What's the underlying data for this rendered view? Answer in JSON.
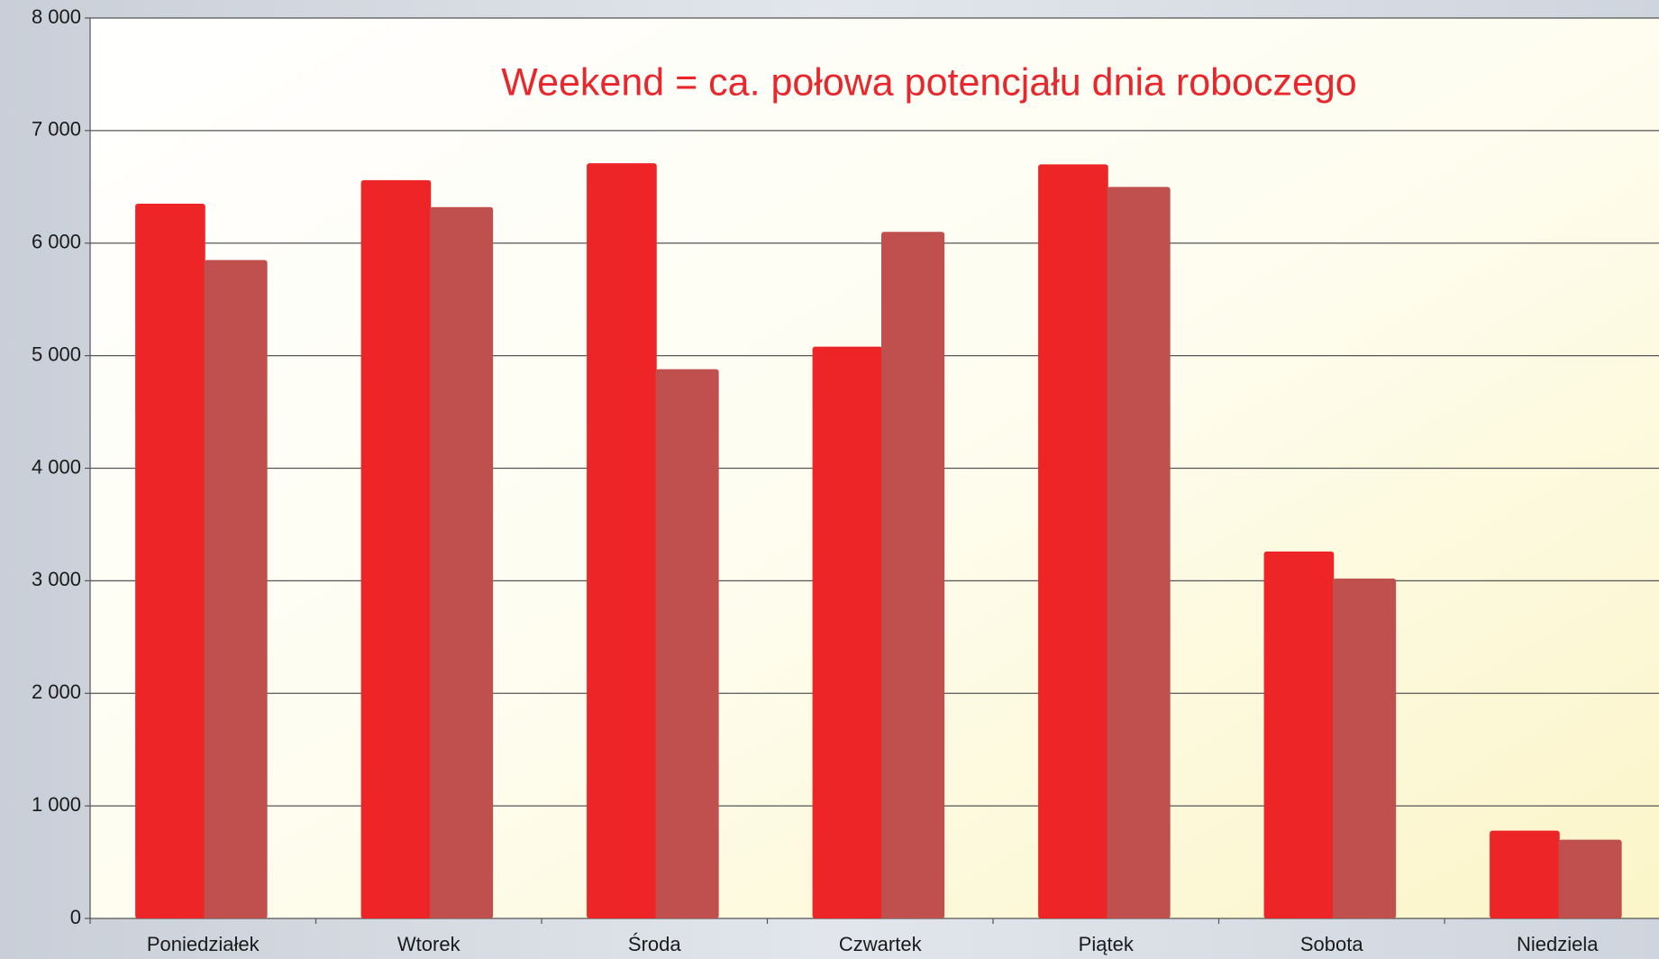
{
  "chart_data": {
    "type": "bar",
    "title": "Weekend = ca. połowa potencjału dnia roboczego",
    "categories": [
      "Poniedziałek",
      "Wtorek",
      "Środa",
      "Czwartek",
      "Piątek",
      "Sobota",
      "Niedziela"
    ],
    "series": [
      {
        "color": "#ee2527",
        "values": [
          6350,
          6560,
          6710,
          5080,
          6700,
          3260,
          780
        ]
      },
      {
        "color": "#c0504d",
        "values": [
          5850,
          6320,
          4880,
          6100,
          6500,
          3020,
          700
        ]
      }
    ],
    "ylim": [
      0,
      8000
    ],
    "yticks": [
      0,
      {
        "value": 1000,
        "label": "1 000"
      },
      {
        "value": 2000,
        "label": "2 000"
      },
      {
        "value": 3000,
        "label": "3 000"
      },
      {
        "value": 4000,
        "label": "4 000"
      },
      {
        "value": 5000,
        "label": "5 000"
      },
      {
        "value": 6000,
        "label": "6 000"
      },
      {
        "value": 7000,
        "label": "7 000"
      },
      {
        "value": 8000,
        "label": "8 000"
      }
    ],
    "grid": true
  }
}
